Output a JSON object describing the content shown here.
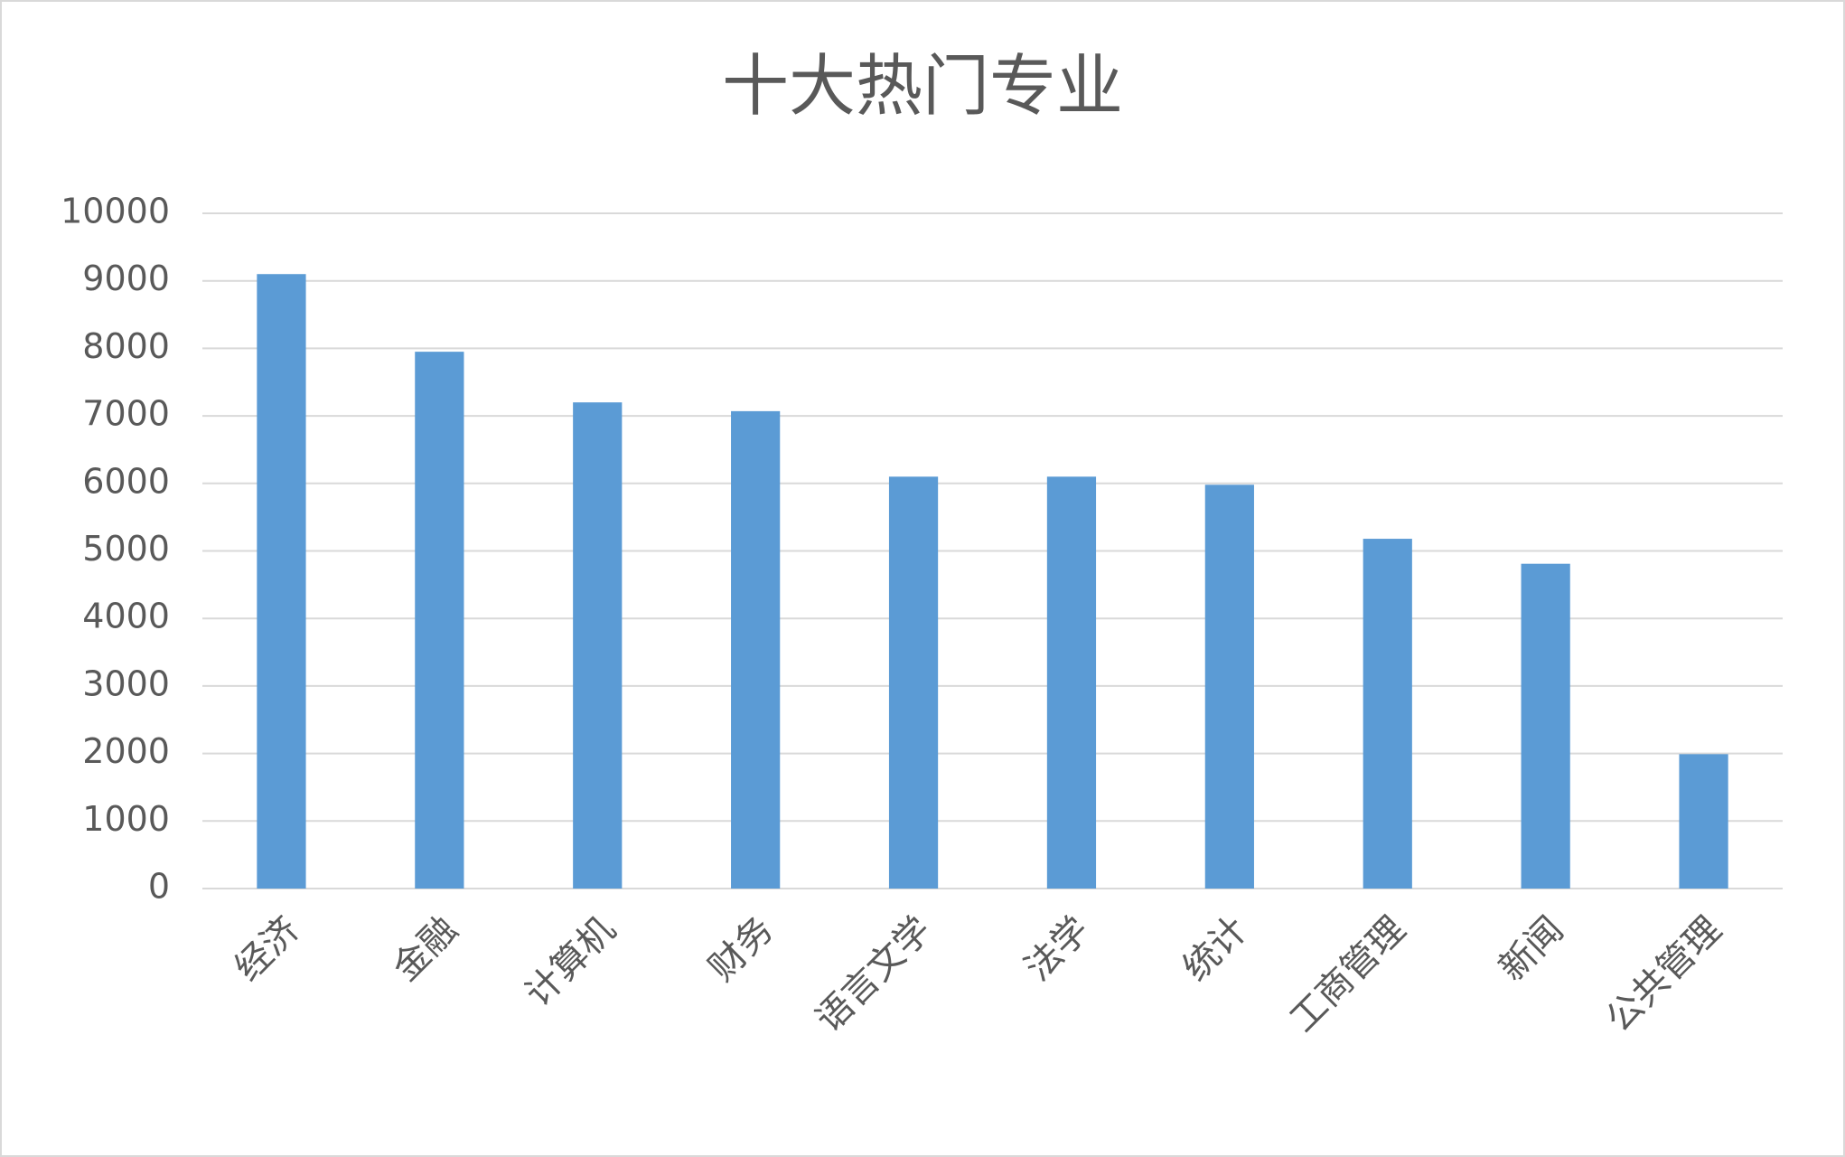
{
  "chart_data": {
    "type": "bar",
    "title": "十大热门专业",
    "categories": [
      "经济",
      "金融",
      "计算机",
      "财务",
      "语言文学",
      "法学",
      "统计",
      "工商管理",
      "新闻",
      "公共管理"
    ],
    "values": [
      9100,
      7950,
      7200,
      7070,
      6100,
      6100,
      5980,
      5180,
      4810,
      1990
    ],
    "color": "#5b9bd5",
    "ylim": [
      0,
      10000
    ],
    "yticks": [
      0,
      1000,
      2000,
      3000,
      4000,
      5000,
      6000,
      7000,
      8000,
      9000,
      10000
    ],
    "grid": true
  }
}
